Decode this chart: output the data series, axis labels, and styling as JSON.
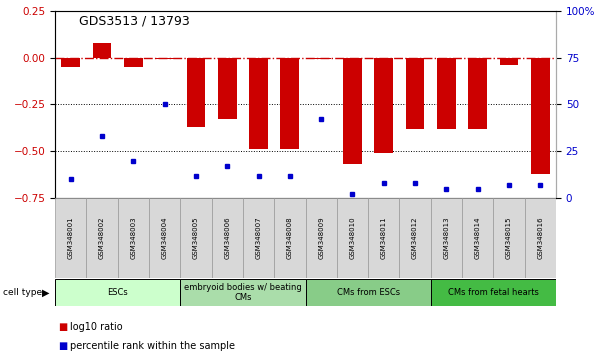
{
  "title": "GDS3513 / 13793",
  "samples": [
    "GSM348001",
    "GSM348002",
    "GSM348003",
    "GSM348004",
    "GSM348005",
    "GSM348006",
    "GSM348007",
    "GSM348008",
    "GSM348009",
    "GSM348010",
    "GSM348011",
    "GSM348012",
    "GSM348013",
    "GSM348014",
    "GSM348015",
    "GSM348016"
  ],
  "log10_ratio": [
    -0.05,
    0.08,
    -0.05,
    -0.01,
    -0.37,
    -0.33,
    -0.49,
    -0.49,
    -0.01,
    -0.57,
    -0.51,
    -0.38,
    -0.38,
    -0.38,
    -0.04,
    -0.62
  ],
  "percentile_rank": [
    10,
    33,
    20,
    50,
    12,
    17,
    12,
    12,
    42,
    2,
    8,
    8,
    5,
    5,
    7,
    7
  ],
  "cell_type_groups": [
    {
      "label": "ESCs",
      "start": 0,
      "end": 4,
      "color": "#ccffcc"
    },
    {
      "label": "embryoid bodies w/ beating\nCMs",
      "start": 4,
      "end": 8,
      "color": "#99ee99"
    },
    {
      "label": "CMs from ESCs",
      "start": 8,
      "end": 12,
      "color": "#66dd66"
    },
    {
      "label": "CMs from fetal hearts",
      "start": 12,
      "end": 16,
      "color": "#33cc33"
    }
  ],
  "bar_color": "#cc0000",
  "dot_color": "#0000cc",
  "ref_line_color": "#cc0000",
  "ylim_left": [
    -0.75,
    0.25
  ],
  "ylim_right": [
    0,
    100
  ],
  "yticks_left": [
    -0.75,
    -0.5,
    -0.25,
    0,
    0.25
  ],
  "yticks_right": [
    0,
    25,
    50,
    75,
    100
  ],
  "ytick_labels_right": [
    "0",
    "25",
    "50",
    "75",
    "100%"
  ],
  "group_colors": [
    "#ccffcc",
    "#aaddaa",
    "#88cc88",
    "#44bb44"
  ]
}
